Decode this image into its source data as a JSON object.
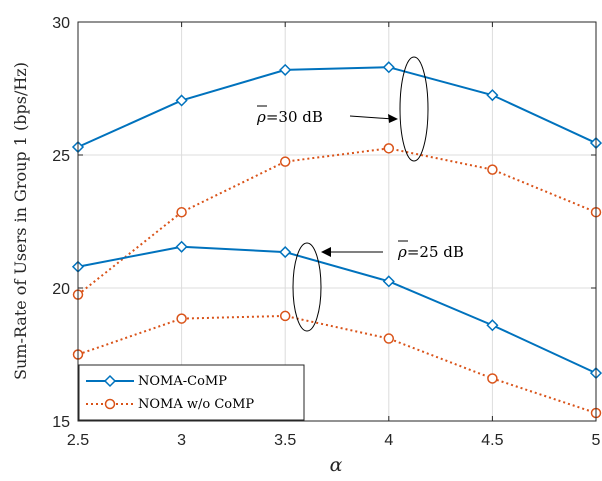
{
  "chart_data": {
    "type": "line",
    "xlabel": "α",
    "ylabel": "Sum-Rate of Users in Group 1 (bps/Hz)",
    "xlim": [
      2.5,
      5
    ],
    "ylim": [
      15,
      30
    ],
    "xticks": [
      "2.5",
      "3",
      "3.5",
      "4",
      "4.5",
      "5"
    ],
    "yticks": [
      "15",
      "20",
      "25",
      "30"
    ],
    "grid": true,
    "legend_position": "bottom-left",
    "legend": [
      "NOMA-CoMP",
      "NOMA w/o CoMP"
    ],
    "x": [
      2.5,
      3,
      3.5,
      4,
      4.5,
      5
    ],
    "series": [
      {
        "name": "NOMA-CoMP",
        "group": "ρ̄=30 dB",
        "color": "#0072BD",
        "marker": "diamond",
        "dash": "solid",
        "values": [
          25.3,
          27.05,
          28.2,
          28.3,
          27.25,
          25.45
        ]
      },
      {
        "name": "NOMA w/o CoMP",
        "group": "ρ̄=30 dB",
        "color": "#D95319",
        "marker": "circle",
        "dash": "dotted",
        "values": [
          19.75,
          22.85,
          24.75,
          25.25,
          24.45,
          22.85
        ]
      },
      {
        "name": "NOMA-CoMP",
        "group": "ρ̄=25 dB",
        "color": "#0072BD",
        "marker": "diamond",
        "dash": "solid",
        "values": [
          20.8,
          21.55,
          21.35,
          20.25,
          18.6,
          16.8
        ]
      },
      {
        "name": "NOMA w/o CoMP",
        "group": "ρ̄=25 dB",
        "color": "#D95319",
        "marker": "circle",
        "dash": "dotted",
        "values": [
          17.5,
          18.85,
          18.95,
          18.1,
          16.6,
          15.3
        ]
      }
    ],
    "annotations": [
      {
        "rho": "ρ",
        "text": "=30 dB"
      },
      {
        "rho": "ρ",
        "text": "=25 dB"
      }
    ]
  }
}
